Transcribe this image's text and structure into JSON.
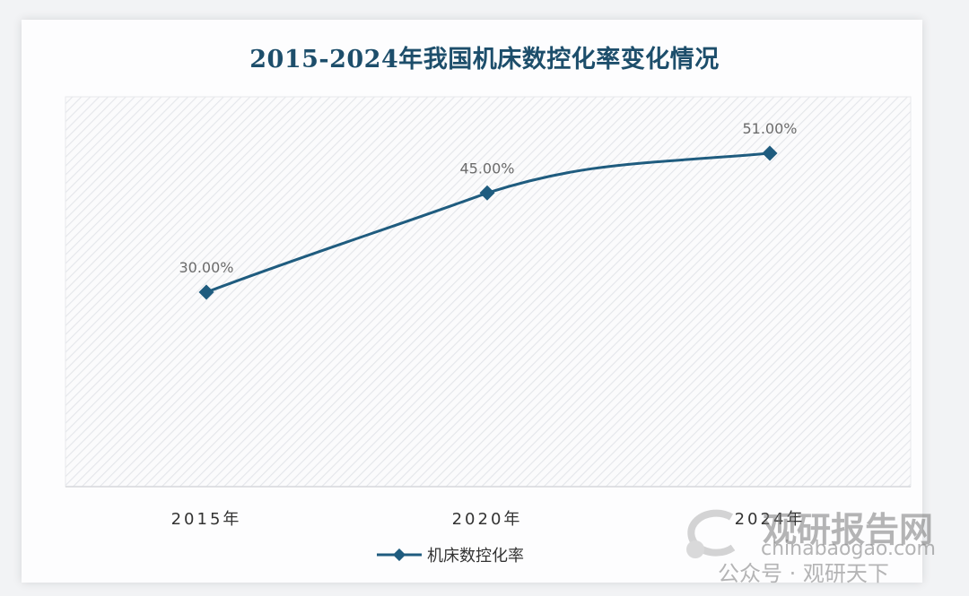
{
  "chart_data": {
    "type": "line",
    "title": "2015-2024年我国机床数控化率变化情况",
    "categories": [
      "2015年",
      "2020年",
      "2024年"
    ],
    "series": [
      {
        "name": "机床数控化率",
        "values": [
          30.0,
          45.0,
          51.0
        ],
        "labels": [
          "30.00%",
          "45.00%",
          "51.00%"
        ],
        "color": "#1f5c7f"
      }
    ],
    "xlabel": "",
    "ylabel": "",
    "ylim": [
      0,
      60
    ],
    "grid": false,
    "legend_position": "bottom",
    "background": "diagonal-hatch"
  },
  "legend": {
    "label": "机床数控化率"
  },
  "watermark": {
    "brand": "观研报告网",
    "url": "chinabaogao.com",
    "wechat": "公众号 · 观研天下"
  }
}
